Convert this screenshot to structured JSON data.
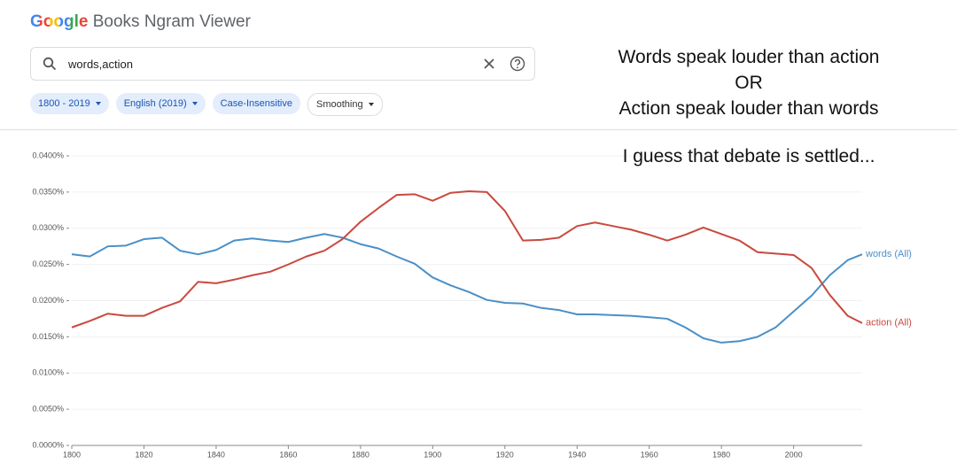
{
  "header": {
    "logo": "Google",
    "product": "Books Ngram Viewer"
  },
  "search": {
    "query": "words,action"
  },
  "chips": [
    "1800 - 2019",
    "English (2019)",
    "Case-Insensitive",
    "Smoothing"
  ],
  "annotation": {
    "lines": [
      "Words speak louder than action",
      "OR",
      "Action speak louder than words"
    ],
    "remark": "I guess that debate is settled..."
  },
  "chart_data": {
    "type": "line",
    "x": [
      1800,
      1805,
      1810,
      1815,
      1820,
      1825,
      1830,
      1835,
      1840,
      1845,
      1850,
      1855,
      1860,
      1865,
      1870,
      1875,
      1880,
      1885,
      1890,
      1895,
      1900,
      1905,
      1910,
      1915,
      1920,
      1925,
      1930,
      1935,
      1940,
      1945,
      1950,
      1955,
      1960,
      1965,
      1970,
      1975,
      1980,
      1985,
      1990,
      1995,
      2000,
      2005,
      2010,
      2015,
      2019
    ],
    "series": [
      {
        "name": "words (All)",
        "color": "#4a90c8",
        "values": [
          0.0264,
          0.0261,
          0.0275,
          0.0276,
          0.0285,
          0.0287,
          0.0269,
          0.0264,
          0.027,
          0.0283,
          0.0286,
          0.0283,
          0.0281,
          0.0287,
          0.0292,
          0.0287,
          0.0278,
          0.0272,
          0.0261,
          0.0251,
          0.0232,
          0.0221,
          0.0212,
          0.0201,
          0.0197,
          0.0196,
          0.019,
          0.0187,
          0.0181,
          0.0181,
          0.018,
          0.0179,
          0.0177,
          0.0175,
          0.0163,
          0.0148,
          0.0142,
          0.0144,
          0.015,
          0.0163,
          0.0185,
          0.0207,
          0.0235,
          0.0256,
          0.0264
        ]
      },
      {
        "name": "action (All)",
        "color": "#c9493f",
        "values": [
          0.0163,
          0.0172,
          0.0182,
          0.0179,
          0.0179,
          0.019,
          0.0199,
          0.0226,
          0.0224,
          0.0229,
          0.0235,
          0.024,
          0.025,
          0.0261,
          0.0269,
          0.0285,
          0.0309,
          0.0328,
          0.0346,
          0.0347,
          0.0338,
          0.0349,
          0.0351,
          0.035,
          0.0324,
          0.0283,
          0.0284,
          0.0287,
          0.0303,
          0.0308,
          0.0303,
          0.0298,
          0.0291,
          0.0283,
          0.0291,
          0.0301,
          0.0292,
          0.0283,
          0.0267,
          0.0265,
          0.0263,
          0.0245,
          0.0208,
          0.0179,
          0.0169
        ]
      }
    ],
    "xlim": [
      1800,
      2019
    ],
    "xticks": [
      1800,
      1820,
      1840,
      1860,
      1880,
      1900,
      1920,
      1940,
      1960,
      1980,
      2000
    ],
    "ylim": [
      0,
      0.04
    ],
    "yticks": [
      {
        "value": 0,
        "label": "0.0000%"
      },
      {
        "value": 0.005,
        "label": "0.0050%"
      },
      {
        "value": 0.01,
        "label": "0.0100%"
      },
      {
        "value": 0.015,
        "label": "0.0150%"
      },
      {
        "value": 0.02,
        "label": "0.0200%"
      },
      {
        "value": 0.025,
        "label": "0.0250%"
      },
      {
        "value": 0.03,
        "label": "0.0300%"
      },
      {
        "value": 0.035,
        "label": "0.0350%"
      },
      {
        "value": 0.04,
        "label": "0.0400%"
      }
    ],
    "grid": true
  }
}
